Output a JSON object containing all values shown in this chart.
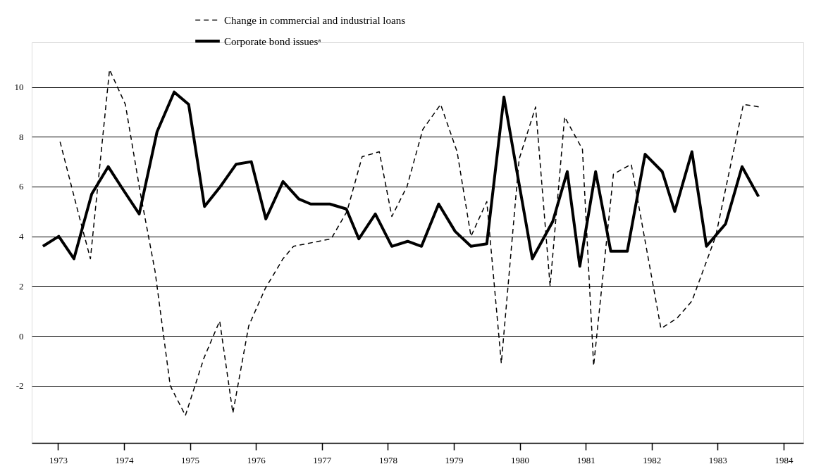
{
  "chart_data": {
    "type": "line",
    "xlim": [
      1972.6,
      1984.3
    ],
    "xticks": [
      1973,
      1974,
      1975,
      1976,
      1977,
      1978,
      1979,
      1980,
      1981,
      1982,
      1983,
      1984
    ],
    "ylim": [
      -4.3,
      11.8
    ],
    "yticks": [
      -2,
      0,
      2,
      4,
      6,
      8,
      10
    ],
    "grid": "y",
    "legend": "top",
    "marker": "none",
    "series": [
      {
        "name": "Change in commercial and industrial loans",
        "color": "#000000",
        "line_style": "dashed",
        "x": [
          1973.03,
          1973.32,
          1973.49,
          1973.78,
          1974.02,
          1974.25,
          1974.47,
          1974.7,
          1974.93,
          1975.21,
          1975.45,
          1975.65,
          1975.89,
          1976.14,
          1976.41,
          1976.57,
          1977.14,
          1977.38,
          1977.61,
          1977.87,
          1978.06,
          1978.29,
          1978.53,
          1978.8,
          1979.05,
          1979.26,
          1979.5,
          1979.72,
          1979.99,
          1980.24,
          1980.46,
          1980.68,
          1980.95,
          1981.12,
          1981.42,
          1981.69,
          1982.14,
          1982.38,
          1982.61,
          1982.97,
          1983.39,
          1983.64
        ],
        "values": [
          7.8,
          4.8,
          3.1,
          10.7,
          9.3,
          5.7,
          2.6,
          -2.0,
          -3.2,
          -0.9,
          0.6,
          -3.1,
          0.4,
          1.9,
          3.1,
          3.6,
          3.9,
          5.0,
          7.2,
          7.4,
          4.8,
          6.0,
          8.3,
          9.3,
          7.4,
          4.0,
          5.4,
          -1.1,
          7.1,
          9.2,
          2.0,
          8.8,
          7.5,
          -1.2,
          6.5,
          6.9,
          0.3,
          0.7,
          1.4,
          4.0,
          9.3,
          9.2
        ]
      },
      {
        "name": "Corporate bond issuesᵃ",
        "color": "#000000",
        "line_style": "solid",
        "x": [
          1972.77,
          1973.01,
          1973.24,
          1973.51,
          1973.76,
          1973.98,
          1974.23,
          1974.5,
          1974.76,
          1974.98,
          1975.22,
          1975.46,
          1975.7,
          1975.93,
          1976.15,
          1976.41,
          1976.65,
          1976.83,
          1977.12,
          1977.37,
          1977.56,
          1977.81,
          1978.06,
          1978.3,
          1978.51,
          1978.77,
          1979.02,
          1979.26,
          1979.5,
          1979.76,
          1979.99,
          1980.19,
          1980.5,
          1980.72,
          1980.91,
          1981.15,
          1981.38,
          1981.63,
          1981.9,
          1982.16,
          1982.35,
          1982.61,
          1982.83,
          1983.12,
          1983.37,
          1983.62
        ],
        "values": [
          3.6,
          4.0,
          3.1,
          5.7,
          6.8,
          5.9,
          4.9,
          8.2,
          9.8,
          9.3,
          5.2,
          6.0,
          6.9,
          7.0,
          4.7,
          6.2,
          5.5,
          5.3,
          5.3,
          5.1,
          3.9,
          4.9,
          3.6,
          3.8,
          3.6,
          5.3,
          4.2,
          3.6,
          3.7,
          9.6,
          6.1,
          3.1,
          4.6,
          6.6,
          2.8,
          6.6,
          3.4,
          3.4,
          7.3,
          6.6,
          5.0,
          7.4,
          3.6,
          4.5,
          6.8,
          5.6
        ]
      }
    ]
  }
}
